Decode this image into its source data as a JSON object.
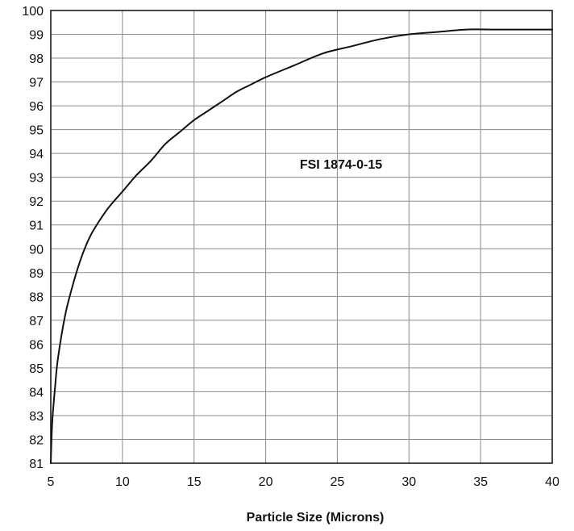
{
  "chart_data": {
    "type": "line",
    "title": "",
    "xlabel": "Particle Size (Microns)",
    "ylabel": "",
    "xlim": [
      5,
      40
    ],
    "ylim": [
      81,
      100
    ],
    "x_ticks": [
      "5",
      "10",
      "15",
      "20",
      "25",
      "30",
      "35",
      "40"
    ],
    "y_ticks": [
      "81",
      "82",
      "83",
      "84",
      "85",
      "86",
      "87",
      "88",
      "89",
      "90",
      "91",
      "92",
      "93",
      "94",
      "95",
      "96",
      "97",
      "98",
      "99",
      "100"
    ],
    "x_grid_step": 5,
    "y_grid_step": 1,
    "grid": true,
    "legend": "none",
    "annotation": "FSI 1874-0-15",
    "series": [
      {
        "x": [
          5.0,
          5.1,
          5.3,
          5.5,
          6.0,
          6.5,
          7.0,
          7.5,
          8.0,
          9.0,
          10.0,
          11.0,
          12.0,
          13.0,
          14.0,
          15.0,
          16.0,
          17.0,
          18.0,
          19.0,
          20.0,
          22.0,
          24.0,
          26.0,
          28.0,
          30.0,
          32.0,
          34.0,
          36.0,
          38.0,
          40.0
        ],
        "y": [
          81.0,
          82.7,
          84.2,
          85.4,
          87.2,
          88.4,
          89.4,
          90.2,
          90.8,
          91.7,
          92.4,
          93.1,
          93.7,
          94.4,
          94.9,
          95.4,
          95.8,
          96.2,
          96.6,
          96.9,
          97.2,
          97.7,
          98.2,
          98.5,
          98.8,
          99.0,
          99.1,
          99.2,
          99.2,
          99.2,
          99.2
        ],
        "color": "#111111"
      }
    ]
  }
}
